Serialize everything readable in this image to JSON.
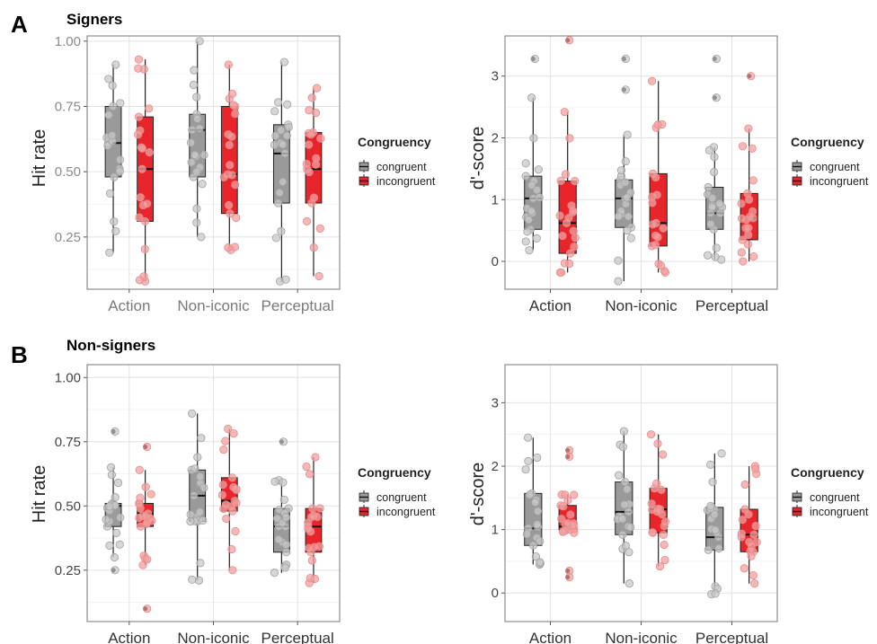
{
  "panels": [
    {
      "letter": "A",
      "title": "Signers"
    },
    {
      "letter": "B",
      "title": "Non-signers"
    }
  ],
  "legend": {
    "title": "Congruency",
    "items": [
      {
        "label": "congruent",
        "color": "#9a9a9a"
      },
      {
        "label": "incongruent",
        "color": "#e41a1c"
      }
    ]
  },
  "colors": {
    "congruent_box": "#9a9a9a",
    "incongruent_box": "#e8252b",
    "congruent_point": "#c8c8c8",
    "incongruent_point": "#f2a0a0"
  },
  "chart_data": [
    {
      "type": "box",
      "panel": "A",
      "ylabel": "Hit rate",
      "ylim": [
        0.05,
        1.02
      ],
      "yticks": [
        "0.25",
        "0.50",
        "0.75",
        "1.00"
      ],
      "yticks_values": [
        0.25,
        0.5,
        0.75,
        1.0
      ],
      "categories": [
        "Action",
        "Non-iconic",
        "Perceptual"
      ],
      "grid": true,
      "legend_position": "right",
      "series": [
        {
          "name": "congruent",
          "boxes": [
            {
              "lower": 0.19,
              "q1": 0.48,
              "median": 0.61,
              "q3": 0.75,
              "upper": 0.91,
              "outliers": []
            },
            {
              "lower": 0.25,
              "q1": 0.48,
              "median": 0.66,
              "q3": 0.72,
              "upper": 1.0,
              "outliers": []
            },
            {
              "lower": 0.08,
              "q1": 0.38,
              "median": 0.57,
              "q3": 0.68,
              "upper": 0.92,
              "outliers": []
            }
          ]
        },
        {
          "name": "incongruent",
          "boxes": [
            {
              "lower": 0.08,
              "q1": 0.31,
              "median": 0.51,
              "q3": 0.71,
              "upper": 0.93,
              "outliers": []
            },
            {
              "lower": 0.2,
              "q1": 0.34,
              "median": 0.49,
              "q3": 0.75,
              "upper": 0.91,
              "outliers": []
            },
            {
              "lower": 0.1,
              "q1": 0.38,
              "median": 0.51,
              "q3": 0.65,
              "upper": 0.82,
              "outliers": []
            }
          ]
        }
      ]
    },
    {
      "type": "box",
      "panel": "A",
      "ylabel": "d'-score",
      "ylim": [
        -0.45,
        3.65
      ],
      "yticks": [
        "0",
        "1",
        "2",
        "3"
      ],
      "yticks_values": [
        0,
        1,
        2,
        3
      ],
      "categories": [
        "Action",
        "Non-iconic",
        "Perceptual"
      ],
      "grid": true,
      "legend_position": "right",
      "series": [
        {
          "name": "congruent",
          "boxes": [
            {
              "lower": 0.18,
              "q1": 0.52,
              "median": 1.02,
              "q3": 1.38,
              "upper": 2.65,
              "outliers": [
                3.28
              ]
            },
            {
              "lower": -0.32,
              "q1": 0.55,
              "median": 1.02,
              "q3": 1.32,
              "upper": 2.05,
              "outliers": [
                3.28,
                2.78
              ]
            },
            {
              "lower": 0.03,
              "q1": 0.52,
              "median": 0.78,
              "q3": 1.2,
              "upper": 1.85,
              "outliers": [
                3.28,
                2.65
              ]
            }
          ]
        },
        {
          "name": "incongruent",
          "boxes": [
            {
              "lower": -0.18,
              "q1": 0.13,
              "median": 0.62,
              "q3": 1.3,
              "upper": 2.42,
              "outliers": [
                3.58
              ]
            },
            {
              "lower": -0.18,
              "q1": 0.25,
              "median": 0.62,
              "q3": 1.42,
              "upper": 2.92,
              "outliers": []
            },
            {
              "lower": 0.0,
              "q1": 0.35,
              "median": 0.7,
              "q3": 1.1,
              "upper": 2.15,
              "outliers": [
                3.0
              ]
            }
          ]
        }
      ]
    },
    {
      "type": "box",
      "panel": "B",
      "ylabel": "Hit rate",
      "ylim": [
        0.05,
        1.05
      ],
      "yticks": [
        "0.25",
        "0.50",
        "0.75",
        "1.00"
      ],
      "yticks_values": [
        0.25,
        0.5,
        0.75,
        1.0
      ],
      "categories": [
        "Action",
        "Non-iconic",
        "Perceptual"
      ],
      "grid": true,
      "legend_position": "right",
      "series": [
        {
          "name": "congruent",
          "boxes": [
            {
              "lower": 0.3,
              "q1": 0.42,
              "median": 0.5,
              "q3": 0.51,
              "upper": 0.65,
              "outliers": [
                0.79,
                0.25
              ]
            },
            {
              "lower": 0.21,
              "q1": 0.44,
              "median": 0.54,
              "q3": 0.64,
              "upper": 0.86,
              "outliers": []
            },
            {
              "lower": 0.24,
              "q1": 0.32,
              "median": 0.42,
              "q3": 0.49,
              "upper": 0.6,
              "outliers": [
                0.75
              ]
            }
          ]
        },
        {
          "name": "incongruent",
          "boxes": [
            {
              "lower": 0.27,
              "q1": 0.42,
              "median": 0.47,
              "q3": 0.51,
              "upper": 0.64,
              "outliers": [
                0.73,
                0.1
              ]
            },
            {
              "lower": 0.25,
              "q1": 0.48,
              "median": 0.52,
              "q3": 0.61,
              "upper": 0.8,
              "outliers": []
            },
            {
              "lower": 0.2,
              "q1": 0.32,
              "median": 0.42,
              "q3": 0.49,
              "upper": 0.69,
              "outliers": []
            }
          ]
        }
      ]
    },
    {
      "type": "box",
      "panel": "B",
      "ylabel": "d'-score",
      "ylim": [
        -0.45,
        3.6
      ],
      "yticks": [
        "0",
        "1",
        "2",
        "3"
      ],
      "yticks_values": [
        0,
        1,
        2,
        3
      ],
      "categories": [
        "Action",
        "Non-iconic",
        "Perceptual"
      ],
      "grid": true,
      "legend_position": "right",
      "series": [
        {
          "name": "congruent",
          "boxes": [
            {
              "lower": 0.45,
              "q1": 0.75,
              "median": 1.02,
              "q3": 1.57,
              "upper": 2.45,
              "outliers": []
            },
            {
              "lower": 0.15,
              "q1": 0.92,
              "median": 1.28,
              "q3": 1.75,
              "upper": 2.55,
              "outliers": []
            },
            {
              "lower": -0.02,
              "q1": 0.68,
              "median": 0.88,
              "q3": 1.35,
              "upper": 2.2,
              "outliers": []
            }
          ]
        },
        {
          "name": "incongruent",
          "boxes": [
            {
              "lower": 0.95,
              "q1": 1.0,
              "median": 1.05,
              "q3": 1.38,
              "upper": 1.55,
              "outliers": [
                2.25,
                2.15,
                0.35,
                0.25
              ]
            },
            {
              "lower": 0.42,
              "q1": 0.95,
              "median": 1.32,
              "q3": 1.65,
              "upper": 2.5,
              "outliers": []
            },
            {
              "lower": 0.15,
              "q1": 0.65,
              "median": 0.92,
              "q3": 1.32,
              "upper": 2.0,
              "outliers": []
            }
          ]
        }
      ]
    }
  ]
}
